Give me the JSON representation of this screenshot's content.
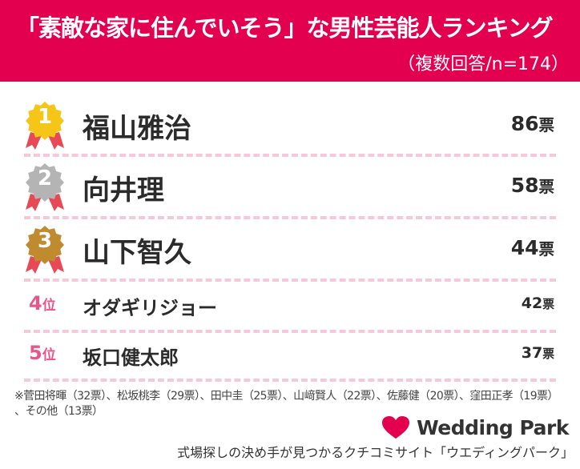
{
  "header": {
    "title": "「素敵な家に住んでいそう」な男性芸能人ランキング",
    "subtitle": "（複数回答/n=174）"
  },
  "colors": {
    "header": "#e2004f",
    "gold": "#f5c518",
    "silver": "#b4b4b4",
    "bronze": "#c08a2e",
    "ribbon": "#e84a55",
    "rank_text": "#e8558a"
  },
  "chart_data": {
    "type": "table",
    "columns": [
      "rank",
      "name",
      "votes"
    ],
    "vote_unit": "票",
    "rank_suffix": "位",
    "rows": [
      {
        "rank": "1",
        "name": "福山雅治",
        "votes": 86
      },
      {
        "rank": "2",
        "name": "向井理",
        "votes": 58
      },
      {
        "rank": "3",
        "name": "山下智久",
        "votes": 44
      },
      {
        "rank": "4",
        "name": "オダギリジョー",
        "votes": 42
      },
      {
        "rank": "5",
        "name": "坂口健太郎",
        "votes": 37
      }
    ]
  },
  "footnote": {
    "line1": "※菅田将暉（32票）、松坂桃李（29票）、田中圭（25票）、山﨑賢人（22票）、佐藤健（20票）、窪田正孝（19票）",
    "line2": "、その他（13票）"
  },
  "logo": {
    "text": "Wedding Park",
    "icon": "heart-icon"
  },
  "tagline": "式場探しの決め手が見つかるクチコミサイト「ウエディングパーク」"
}
